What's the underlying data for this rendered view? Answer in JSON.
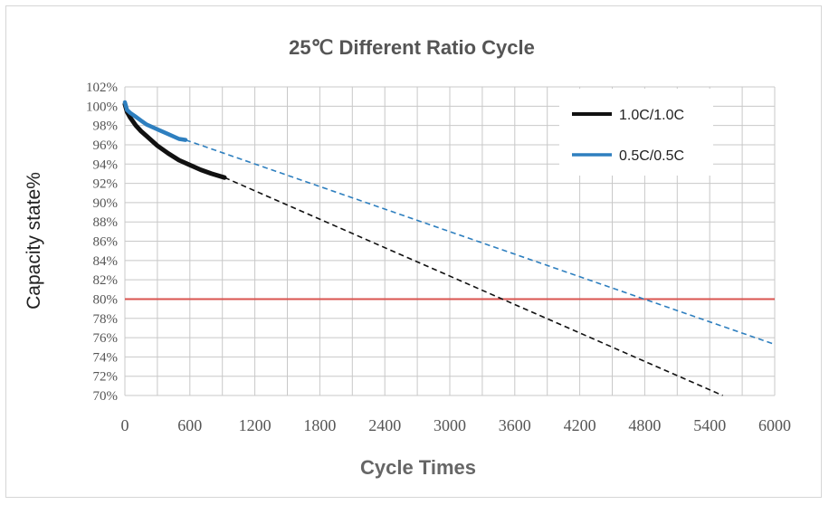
{
  "chart_data": {
    "type": "line",
    "title": "25℃ Different Ratio Cycle",
    "xlabel": "Cycle Times",
    "ylabel": "Capacity state%",
    "xlim": [
      0,
      6000
    ],
    "ylim": [
      70,
      102
    ],
    "x_ticks": [
      0,
      600,
      1200,
      1800,
      2400,
      3000,
      3600,
      4200,
      4800,
      5400,
      6000
    ],
    "x_tick_labels": [
      "0",
      "600",
      "1200",
      "1800",
      "2400",
      "3000",
      "3600",
      "4200",
      "4800",
      "5400",
      "6000"
    ],
    "y_ticks": [
      70,
      72,
      74,
      76,
      78,
      80,
      82,
      84,
      86,
      88,
      90,
      92,
      94,
      96,
      98,
      100,
      102
    ],
    "y_tick_labels": [
      "70%",
      "72%",
      "74%",
      "76%",
      "78%",
      "80%",
      "82%",
      "84%",
      "86%",
      "88%",
      "90%",
      "92%",
      "94%",
      "96%",
      "98%",
      "100%",
      "102%"
    ],
    "grid": true,
    "legend_position": "top-right",
    "series": [
      {
        "name": "1.0C/1.0C",
        "color": "#111111",
        "measured": {
          "x": [
            0,
            20,
            50,
            100,
            150,
            200,
            300,
            400,
            500,
            600,
            700,
            800,
            920
          ],
          "y": [
            100.2,
            99.4,
            98.8,
            98.0,
            97.4,
            96.9,
            95.9,
            95.1,
            94.4,
            93.9,
            93.4,
            93.0,
            92.6
          ]
        },
        "extrapolated": {
          "x": [
            920,
            5520
          ],
          "y": [
            92.6,
            70.0
          ]
        }
      },
      {
        "name": "0.5C/0.5C",
        "color": "#2e7fbf",
        "measured": {
          "x": [
            0,
            20,
            50,
            100,
            150,
            200,
            300,
            400,
            500,
            560
          ],
          "y": [
            100.4,
            99.6,
            99.3,
            98.9,
            98.5,
            98.1,
            97.6,
            97.1,
            96.6,
            96.5
          ]
        },
        "extrapolated": {
          "x": [
            560,
            6000
          ],
          "y": [
            96.5,
            75.3
          ]
        }
      }
    ],
    "reference_lines": [
      {
        "orientation": "horizontal",
        "value": 80,
        "color": "#d9534f"
      }
    ]
  }
}
